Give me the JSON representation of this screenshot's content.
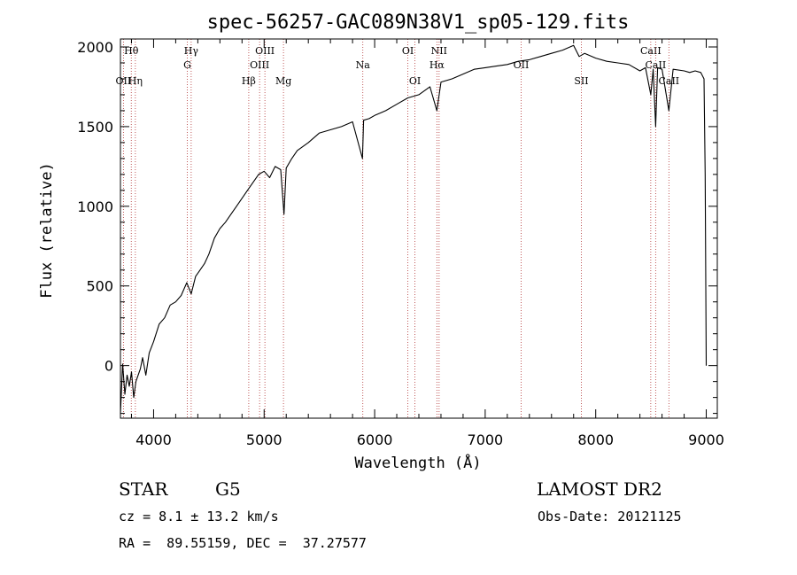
{
  "chart_data": {
    "type": "line",
    "title": "spec-56257-GAC089N38V1_sp05-129.fits",
    "xlabel": "Wavelength (Å)",
    "ylabel": "Flux (relative)",
    "xlim": [
      3700,
      9100
    ],
    "ylim": [
      -330,
      2050
    ],
    "x_ticks": [
      4000,
      5000,
      6000,
      7000,
      8000,
      9000
    ],
    "y_ticks": [
      0,
      500,
      1000,
      1500,
      2000
    ],
    "grid": false,
    "series": [
      {
        "x": [
          3700,
          3720,
          3740,
          3760,
          3780,
          3800,
          3820,
          3840,
          3860,
          3880,
          3900,
          3930,
          3960,
          4000,
          4050,
          4100,
          4150,
          4200,
          4250,
          4300,
          4340,
          4380,
          4420,
          4460,
          4500,
          4550,
          4600,
          4650,
          4700,
          4750,
          4800,
          4850,
          4900,
          4950,
          5000,
          5050,
          5100,
          5150,
          5180,
          5200,
          5250,
          5300,
          5400,
          5500,
          5600,
          5700,
          5800,
          5890,
          5900,
          5950,
          6000,
          6100,
          6200,
          6300,
          6400,
          6500,
          6563,
          6600,
          6700,
          6800,
          6900,
          7000,
          7100,
          7200,
          7300,
          7400,
          7500,
          7600,
          7700,
          7800,
          7850,
          7900,
          8000,
          8100,
          8200,
          8300,
          8400,
          8450,
          8498,
          8520,
          8542,
          8560,
          8600,
          8662,
          8700,
          8800,
          8850,
          8900,
          8950,
          8980,
          8990,
          9000
        ],
        "y": [
          -300,
          10,
          -180,
          -60,
          -130,
          -40,
          -200,
          -100,
          -60,
          -20,
          50,
          -60,
          80,
          150,
          260,
          300,
          380,
          400,
          440,
          520,
          450,
          560,
          600,
          640,
          700,
          800,
          860,
          900,
          950,
          1000,
          1050,
          1100,
          1150,
          1200,
          1220,
          1180,
          1250,
          1230,
          950,
          1240,
          1300,
          1350,
          1400,
          1460,
          1480,
          1500,
          1530,
          1300,
          1540,
          1550,
          1570,
          1600,
          1640,
          1680,
          1700,
          1750,
          1600,
          1780,
          1800,
          1830,
          1860,
          1870,
          1880,
          1890,
          1910,
          1920,
          1940,
          1960,
          1980,
          2010,
          1940,
          1960,
          1930,
          1910,
          1900,
          1890,
          1850,
          1870,
          1700,
          1860,
          1500,
          1870,
          1860,
          1600,
          1860,
          1850,
          1840,
          1850,
          1840,
          1800,
          1200,
          0
        ]
      }
    ],
    "spectral_lines": [
      {
        "label": "Hθ",
        "x": 3798,
        "row": 1
      },
      {
        "label": "OII",
        "x": 3727,
        "row": 3
      },
      {
        "label": "Hη",
        "x": 3835,
        "row": 3
      },
      {
        "label": "Hγ",
        "x": 4340,
        "row": 1
      },
      {
        "label": "G",
        "x": 4305,
        "row": 2
      },
      {
        "label": "Hβ",
        "x": 4861,
        "row": 3
      },
      {
        "label": "OIII",
        "x": 5007,
        "row": 1
      },
      {
        "label": "OIII",
        "x": 4959,
        "row": 2
      },
      {
        "label": "Mg",
        "x": 5175,
        "row": 3
      },
      {
        "label": "Na",
        "x": 5893,
        "row": 2
      },
      {
        "label": "OI",
        "x": 6300,
        "row": 1
      },
      {
        "label": "OI",
        "x": 6364,
        "row": 3
      },
      {
        "label": "NII",
        "x": 6583,
        "row": 1
      },
      {
        "label": "Hα",
        "x": 6563,
        "row": 2
      },
      {
        "label": "OII",
        "x": 7325,
        "row": 2
      },
      {
        "label": "SII",
        "x": 7870,
        "row": 3
      },
      {
        "label": "CaII",
        "x": 8498,
        "row": 1
      },
      {
        "label": "CaII",
        "x": 8542,
        "row": 2
      },
      {
        "label": "CaII",
        "x": 8662,
        "row": 3
      }
    ]
  },
  "info": {
    "object_class": "STAR",
    "subclass": "G5",
    "survey": "LAMOST DR2",
    "cz": "cz = 8.1 ± 13.2 km/s",
    "obs_date": "Obs-Date: 20121125",
    "coords": "RA =  89.55159, DEC =  37.27577"
  }
}
